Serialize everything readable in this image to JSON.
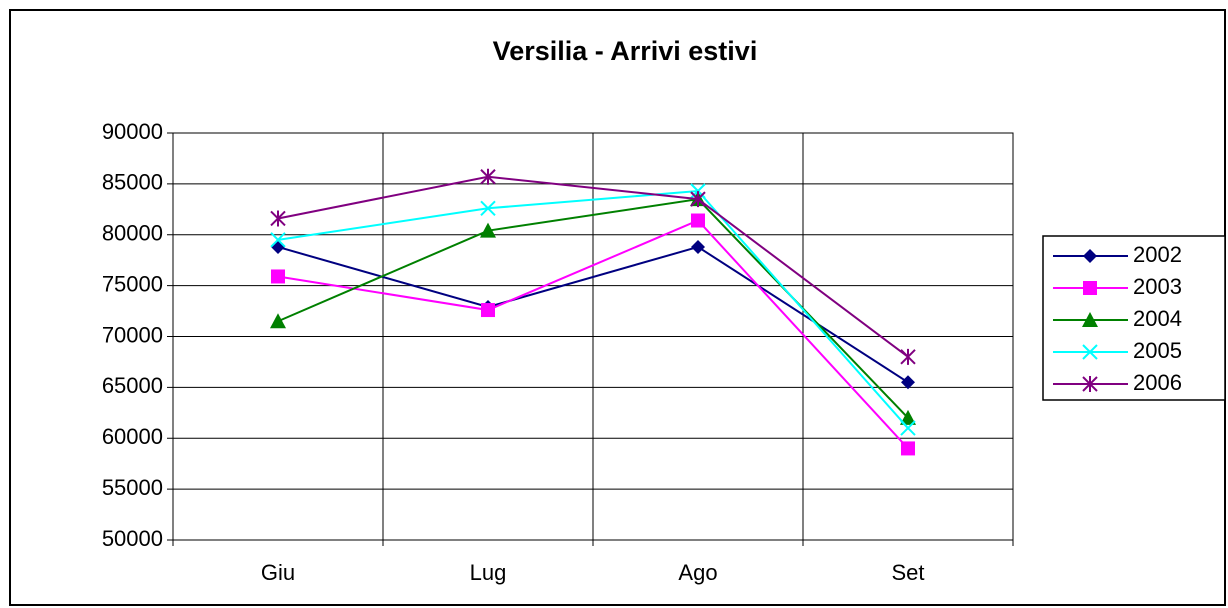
{
  "chart_data": {
    "type": "line",
    "title": "Versilia - Arrivi estivi",
    "categories": [
      "Giu",
      "Lug",
      "Ago",
      "Set"
    ],
    "series": [
      {
        "name": "2002",
        "color": "#000080",
        "marker": "diamond",
        "values": [
          78800,
          72900,
          78800,
          65500
        ]
      },
      {
        "name": "2003",
        "color": "#ff00ff",
        "marker": "square",
        "values": [
          75900,
          72600,
          81400,
          59000
        ]
      },
      {
        "name": "2004",
        "color": "#008000",
        "marker": "triangle",
        "values": [
          71500,
          80400,
          83500,
          62000
        ]
      },
      {
        "name": "2005",
        "color": "#00ffff",
        "marker": "x",
        "values": [
          79500,
          82600,
          84300,
          61000
        ]
      },
      {
        "name": "2006",
        "color": "#800080",
        "marker": "star",
        "values": [
          81600,
          85700,
          83500,
          68000
        ]
      }
    ],
    "ylim": [
      50000,
      90000
    ],
    "yticks": [
      50000,
      55000,
      60000,
      65000,
      70000,
      75000,
      80000,
      85000,
      90000
    ],
    "grid": true,
    "legend": "right"
  }
}
